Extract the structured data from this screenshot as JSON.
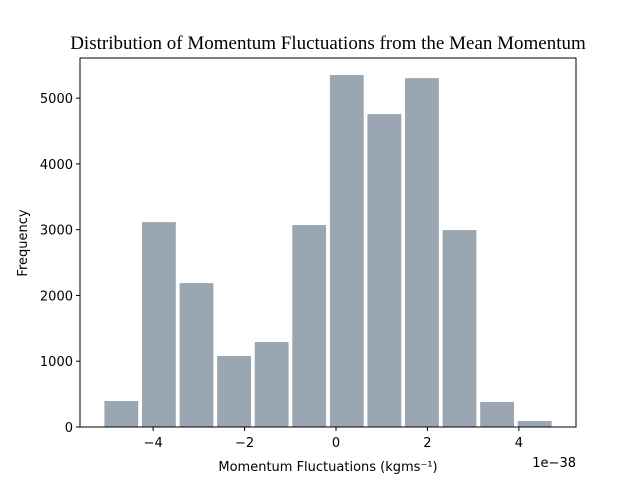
{
  "chart_data": {
    "type": "histogram",
    "title": "Distribution of Momentum Fluctuations from the Mean Momentum",
    "x_label": "Momentum Fluctuations (kgms⁻¹)",
    "y_label": "Frequency",
    "x_offset_label": "1e−38",
    "bins": [
      -5.107,
      -4.285,
      -3.463,
      -2.641,
      -1.819,
      -0.997,
      -0.175,
      0.647,
      1.469,
      2.291,
      3.113,
      3.935,
      4.757
    ],
    "values": [
      395,
      3115,
      2188,
      1079,
      1292,
      3070,
      5350,
      4757,
      5304,
      2994,
      380,
      91
    ],
    "color": "#9aa6b2",
    "xlim": [
      -5.6,
      5.25
    ],
    "ylim": [
      0,
      5610
    ],
    "xticks": [
      {
        "value": -4,
        "label": "−4"
      },
      {
        "value": -2,
        "label": "−2"
      },
      0,
      2,
      4
    ],
    "yticks": [
      0,
      1000,
      2000,
      3000,
      4000,
      5000
    ]
  }
}
